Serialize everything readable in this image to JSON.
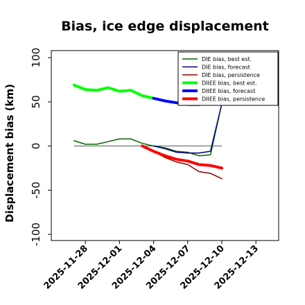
{
  "chart_data": {
    "type": "line",
    "title": "Bias, ice edge displacement",
    "ylabel": "Displacement bias (km)",
    "xlabel": "",
    "ylim": [
      -107,
      108
    ],
    "yticks": [
      100,
      50,
      0,
      -50,
      -100
    ],
    "xlim": [
      "2025-11-25",
      "2025-12-15"
    ],
    "xticks": [
      "2025-11-28",
      "2025-12-01",
      "2025-12-04",
      "2025-12-07",
      "2025-12-10",
      "2025-12-13"
    ],
    "highlighted_xtick": "2025-12-04",
    "highlight_color": "#228b22",
    "zero_line": true,
    "legend_position": "upper right",
    "series": [
      {
        "name": "D$^{IE}$ bias, best est.",
        "legend_label": "DIE bias, best est.",
        "color": "#006400",
        "width": 1.5,
        "x": [
          "2025-11-27",
          "2025-11-28",
          "2025-11-29",
          "2025-11-30",
          "2025-12-01",
          "2025-12-02",
          "2025-12-03",
          "2025-12-04",
          "2025-12-05",
          "2025-12-06",
          "2025-12-07",
          "2025-12-08",
          "2025-12-09",
          "2025-12-10"
        ],
        "values": [
          6,
          2,
          2,
          5,
          8,
          8,
          3,
          0,
          -2,
          -6,
          -7,
          -11,
          -10,
          48
        ]
      },
      {
        "name": "D$^{IE}$ bias, forecast",
        "legend_label": "DIE bias, forecast",
        "color": "#00008b",
        "width": 1.5,
        "x": [
          "2025-12-04",
          "2025-12-05",
          "2025-12-06",
          "2025-12-07",
          "2025-12-08",
          "2025-12-09",
          "2025-12-10"
        ],
        "values": [
          0,
          -3,
          -7,
          -8,
          -8,
          -6,
          48
        ]
      },
      {
        "name": "D$^{IE}$ bias, persistence",
        "legend_label": "DIE bias, persistence",
        "color": "#8b0000",
        "width": 1.5,
        "x": [
          "2025-12-03",
          "2025-12-04",
          "2025-12-05",
          "2025-12-06",
          "2025-12-07",
          "2025-12-08",
          "2025-12-09",
          "2025-12-10"
        ],
        "values": [
          0,
          -6,
          -13,
          -18,
          -21,
          -29,
          -31,
          -37
        ]
      },
      {
        "name": "D$^{IIEE}$ bias, best est.",
        "legend_label": "DIIEE bias, best est.",
        "color": "#00ff00",
        "width": 4,
        "x": [
          "2025-11-27",
          "2025-11-28",
          "2025-11-29",
          "2025-11-30",
          "2025-12-01",
          "2025-12-02",
          "2025-12-03",
          "2025-12-04"
        ],
        "values": [
          69,
          64,
          63,
          66,
          62,
          63,
          57,
          54
        ]
      },
      {
        "name": "D$^{IIEE}$ bias, forecast",
        "legend_label": "DIIEE bias, forecast",
        "color": "#0000ff",
        "width": 4,
        "x": [
          "2025-12-04",
          "2025-12-05",
          "2025-12-06",
          "2025-12-07",
          "2025-12-08",
          "2025-12-09",
          "2025-12-10"
        ],
        "values": [
          54,
          51,
          49,
          47,
          47,
          48,
          48
        ]
      },
      {
        "name": "D$^{IIEE}$ bias, persistence",
        "legend_label": "DIIEE bias, persistence",
        "color": "#ff0000",
        "width": 4,
        "x": [
          "2025-12-03",
          "2025-12-04",
          "2025-12-05",
          "2025-12-06",
          "2025-12-07",
          "2025-12-08",
          "2025-12-09",
          "2025-12-10"
        ],
        "values": [
          0,
          -6,
          -11,
          -15,
          -17,
          -21,
          -22,
          -25
        ]
      }
    ]
  }
}
